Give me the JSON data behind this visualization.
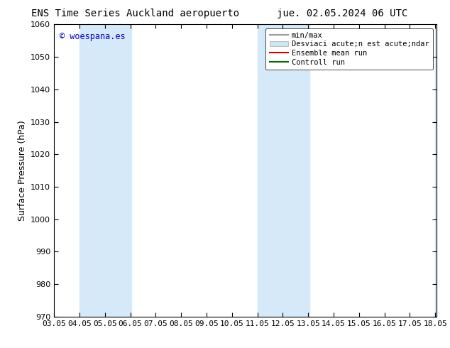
{
  "title_left": "ENS Time Series Auckland aeropuerto",
  "title_right": "jue. 02.05.2024 06 UTC",
  "ylabel": "Surface Pressure (hPa)",
  "ylim": [
    970,
    1060
  ],
  "yticks": [
    970,
    980,
    990,
    1000,
    1010,
    1020,
    1030,
    1040,
    1050,
    1060
  ],
  "xlim": [
    3.0,
    18.05
  ],
  "xtick_labels": [
    "03.05",
    "04.05",
    "05.05",
    "06.05",
    "07.05",
    "08.05",
    "09.05",
    "10.05",
    "11.05",
    "12.05",
    "13.05",
    "14.05",
    "15.05",
    "16.05",
    "17.05",
    "18.05"
  ],
  "xtick_positions": [
    3.0,
    4.0,
    5.0,
    6.0,
    7.0,
    8.0,
    9.0,
    10.0,
    11.0,
    12.0,
    13.0,
    14.0,
    15.0,
    16.0,
    17.0,
    18.0
  ],
  "shaded_bands": [
    {
      "xmin": 4.0,
      "xmax": 6.05,
      "color": "#d6e9f8"
    },
    {
      "xmin": 11.0,
      "xmax": 13.05,
      "color": "#d6e9f8"
    },
    {
      "xmin": 18.0,
      "xmax": 18.05,
      "color": "#d6e9f8"
    }
  ],
  "watermark": "© woespana.es",
  "watermark_color": "#0000cc",
  "legend_entries": [
    {
      "label": "min/max",
      "color": "#999999",
      "lw": 1.5,
      "type": "line"
    },
    {
      "label": "Desviaci acute;n est acute;ndar",
      "color": "#cce5f5",
      "lw": 8,
      "type": "band"
    },
    {
      "label": "Ensemble mean run",
      "color": "#cc0000",
      "lw": 1.5,
      "type": "line"
    },
    {
      "label": "Controll run",
      "color": "#006600",
      "lw": 1.5,
      "type": "line"
    }
  ],
  "bg_color": "#ffffff",
  "plot_bg_color": "#ffffff",
  "spine_color": "#000000",
  "title_fontsize": 10,
  "tick_fontsize": 8,
  "legend_fontsize": 7.5
}
